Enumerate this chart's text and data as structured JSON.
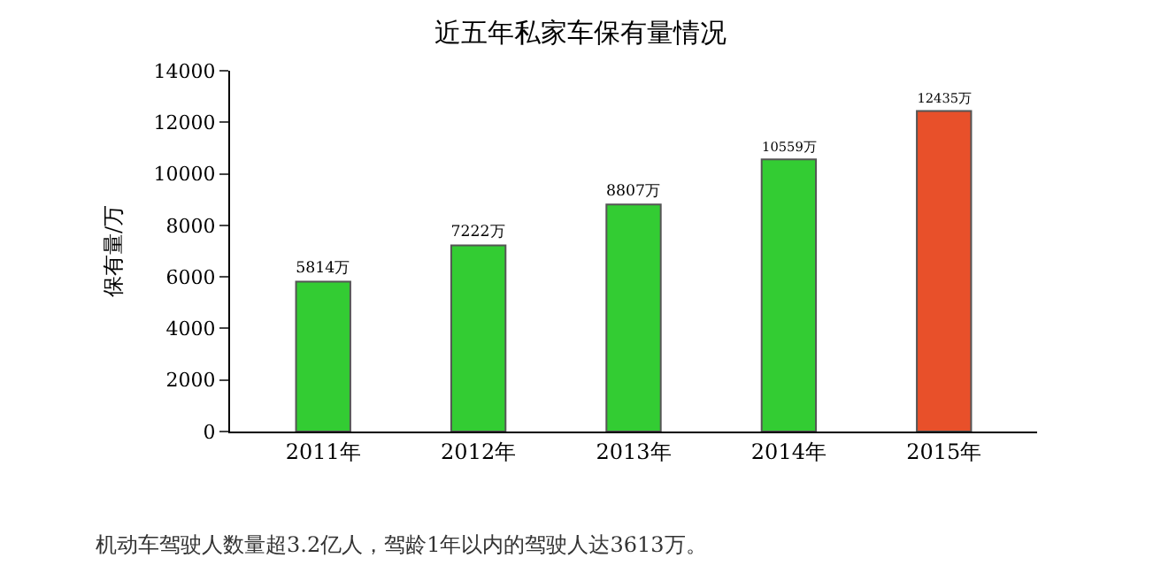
{
  "chart_data": {
    "type": "bar",
    "title": "近五年私家车保有量情况",
    "ylabel": "保有量/万",
    "categories": [
      "2011年",
      "2012年",
      "2013年",
      "2014年",
      "2015年"
    ],
    "values": [
      5814,
      7222,
      8807,
      10559,
      12435
    ],
    "colors": [
      "#33cc33",
      "#33cc33",
      "#33cc33",
      "#33cc33",
      "#e8502a"
    ],
    "value_labels": [
      "5814万",
      "7222万",
      "8807万",
      "10559万",
      "12435万"
    ],
    "ylim": [
      0,
      14000
    ],
    "yticks": [
      0,
      2000,
      4000,
      6000,
      8000,
      10000,
      12000,
      14000
    ],
    "grid": false,
    "annotations": [
      "机动车驾驶人数量超3.2亿人，驾龄1年以内的驾驶人达3613万。"
    ]
  }
}
